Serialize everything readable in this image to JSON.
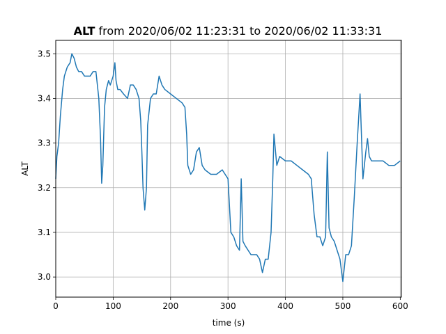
{
  "chart_data": {
    "type": "line",
    "title_bold": "ALT",
    "title_rest": " from 2020/06/02 11:23:31 to 2020/06/02 11:33:31",
    "xlabel": "time (s)",
    "ylabel": "ALT",
    "xlim": [
      0,
      602
    ],
    "ylim": [
      2.955,
      3.53
    ],
    "xticks": [
      0,
      100,
      200,
      300,
      400,
      500,
      600
    ],
    "xtick_labels": [
      "0",
      "100",
      "200",
      "300",
      "400",
      "500",
      "600"
    ],
    "yticks": [
      3.0,
      3.1,
      3.2,
      3.3,
      3.4,
      3.5
    ],
    "ytick_labels": [
      "3.0",
      "3.1",
      "3.2",
      "3.3",
      "3.4",
      "3.5"
    ],
    "grid": true,
    "series": [
      {
        "color": "#1f77b4",
        "x": [
          0,
          2,
          5,
          8,
          12,
          15,
          20,
          25,
          28,
          32,
          36,
          40,
          45,
          50,
          55,
          60,
          65,
          70,
          75,
          78,
          80,
          82,
          85,
          88,
          90,
          92,
          95,
          100,
          103,
          105,
          108,
          112,
          118,
          125,
          130,
          135,
          140,
          145,
          148,
          150,
          152,
          155,
          158,
          160,
          165,
          170,
          175,
          180,
          185,
          190,
          200,
          210,
          220,
          225,
          228,
          230,
          235,
          240,
          245,
          250,
          255,
          260,
          270,
          280,
          290,
          295,
          300,
          305,
          310,
          315,
          320,
          323,
          326,
          330,
          340,
          350,
          355,
          360,
          365,
          370,
          375,
          378,
          380,
          385,
          390,
          400,
          410,
          420,
          430,
          440,
          445,
          450,
          455,
          460,
          465,
          470,
          473,
          476,
          480,
          485,
          490,
          495,
          500,
          505,
          510,
          515,
          520,
          525,
          530,
          535,
          540,
          543,
          546,
          550,
          560,
          570,
          580,
          590,
          600
        ],
        "values": [
          3.22,
          3.27,
          3.3,
          3.36,
          3.42,
          3.45,
          3.47,
          3.48,
          3.5,
          3.49,
          3.47,
          3.46,
          3.46,
          3.45,
          3.45,
          3.45,
          3.46,
          3.46,
          3.4,
          3.31,
          3.21,
          3.25,
          3.38,
          3.42,
          3.43,
          3.44,
          3.43,
          3.45,
          3.48,
          3.44,
          3.42,
          3.42,
          3.41,
          3.4,
          3.43,
          3.43,
          3.42,
          3.4,
          3.35,
          3.28,
          3.2,
          3.15,
          3.2,
          3.34,
          3.4,
          3.41,
          3.41,
          3.45,
          3.43,
          3.42,
          3.41,
          3.4,
          3.39,
          3.38,
          3.32,
          3.25,
          3.23,
          3.24,
          3.28,
          3.29,
          3.25,
          3.24,
          3.23,
          3.23,
          3.24,
          3.23,
          3.22,
          3.1,
          3.09,
          3.07,
          3.06,
          3.22,
          3.08,
          3.07,
          3.05,
          3.05,
          3.04,
          3.01,
          3.04,
          3.04,
          3.1,
          3.22,
          3.32,
          3.25,
          3.27,
          3.26,
          3.26,
          3.25,
          3.24,
          3.23,
          3.22,
          3.14,
          3.09,
          3.09,
          3.07,
          3.09,
          3.28,
          3.11,
          3.09,
          3.08,
          3.06,
          3.04,
          2.99,
          3.05,
          3.05,
          3.07,
          3.18,
          3.3,
          3.41,
          3.22,
          3.28,
          3.31,
          3.27,
          3.26,
          3.26,
          3.26,
          3.25,
          3.25,
          3.26
        ]
      }
    ]
  }
}
